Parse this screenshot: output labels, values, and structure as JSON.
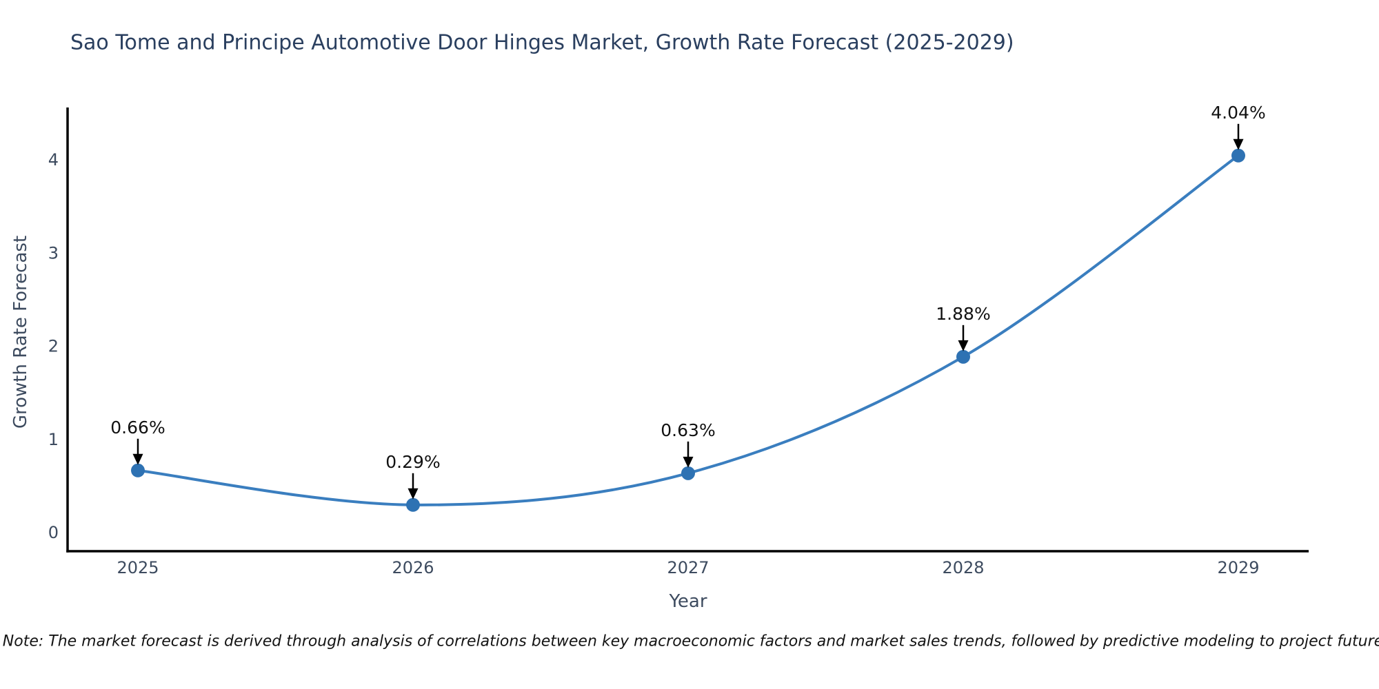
{
  "title": "Sao Tome and Principe Automotive Door Hinges Market, Growth Rate Forecast (2025-2029)",
  "note": "Note: The market forecast is derived through analysis of correlations between key macroeconomic factors and market sales trends, followed by predictive modeling to project future sales.",
  "chart_data": {
    "type": "line",
    "title": "Sao Tome and Principe Automotive Door Hinges Market, Growth Rate Forecast (2025-2029)",
    "xlabel": "Year",
    "ylabel": "Growth Rate Forecast",
    "categories": [
      "2025",
      "2026",
      "2027",
      "2028",
      "2029"
    ],
    "values": [
      0.66,
      0.29,
      0.63,
      1.88,
      4.04
    ],
    "point_labels": [
      "0.66%",
      "0.29%",
      "0.63%",
      "1.88%",
      "4.04%"
    ],
    "yticks": [
      0,
      1,
      2,
      3,
      4
    ],
    "ylim": [
      -0.21,
      4.55
    ],
    "grid": false,
    "legend_position": "none",
    "curve": "spline",
    "line_color": "#3a7ebf",
    "marker_color": "#2e72b3",
    "axis_spine_color": "#000000",
    "annotation_text_color": "#111111",
    "annotation_arrow_color": "#000000",
    "tick_label_color": "#3d4b5f",
    "title_color": "#2a3f5f"
  }
}
